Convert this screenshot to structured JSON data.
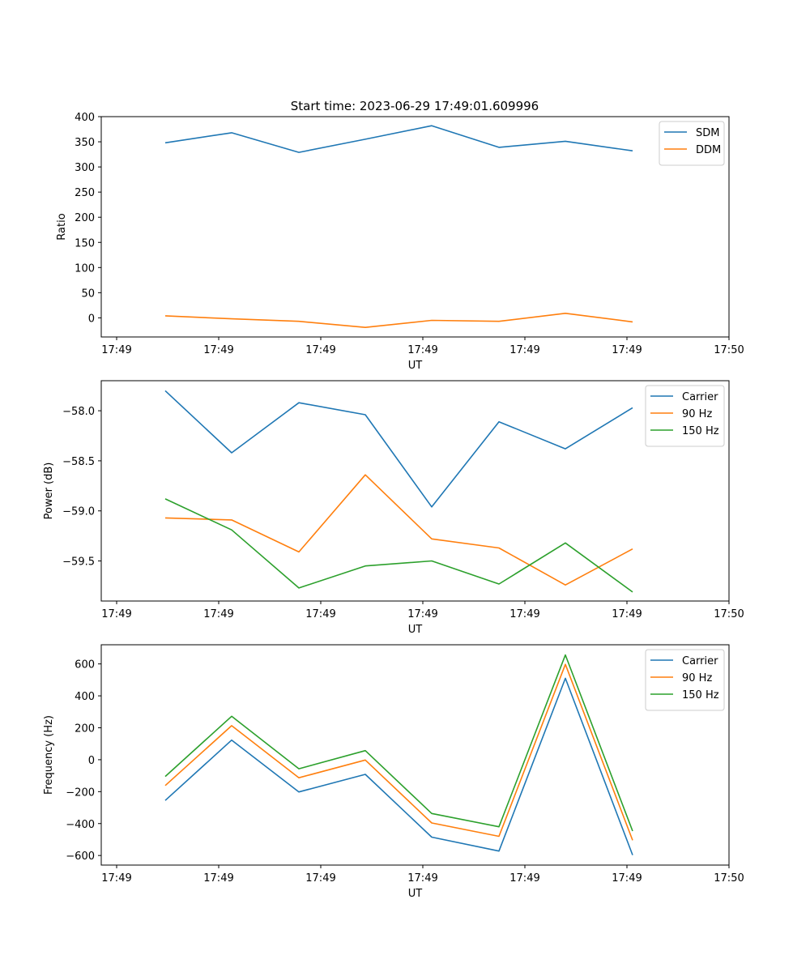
{
  "figure": {
    "title": "Start time: 2023-06-29 17:49:01.609996"
  },
  "chart_data": [
    {
      "type": "line",
      "xlabel": "UT",
      "ylabel": "Ratio",
      "x_tick_labels": [
        "17:49",
        "17:49",
        "17:49",
        "17:49",
        "17:49",
        "17:49",
        "17:50"
      ],
      "ylim": [
        -38,
        400
      ],
      "yticks": [
        0,
        50,
        100,
        150,
        200,
        250,
        300,
        350,
        400
      ],
      "ytick_labels": [
        "0",
        "50",
        "100",
        "150",
        "200",
        "250",
        "300",
        "350",
        "400"
      ],
      "legend_position": "upper right",
      "grid": false,
      "series": [
        {
          "name": "SDM",
          "color": "#1f77b4",
          "values": [
            348,
            368,
            329,
            355,
            382,
            339,
            351,
            332
          ]
        },
        {
          "name": "DDM",
          "color": "#ff7f0e",
          "values": [
            4,
            -2,
            -7,
            -19,
            -5,
            -7,
            9,
            -8
          ]
        }
      ]
    },
    {
      "type": "line",
      "xlabel": "UT",
      "ylabel": "Power (dB)",
      "x_tick_labels": [
        "17:49",
        "17:49",
        "17:49",
        "17:49",
        "17:49",
        "17:49",
        "17:50"
      ],
      "ylim": [
        -59.9,
        -57.7
      ],
      "yticks": [
        -58.0,
        -58.5,
        -59.0,
        -59.5
      ],
      "ytick_labels": [
        "−58.0",
        "−58.5",
        "−59.0",
        "−59.5"
      ],
      "legend_position": "upper right",
      "grid": false,
      "series": [
        {
          "name": "Carrier",
          "color": "#1f77b4",
          "values": [
            -57.8,
            -58.42,
            -57.92,
            -58.04,
            -58.96,
            -58.11,
            -58.38,
            -57.97
          ]
        },
        {
          "name": "90 Hz",
          "color": "#ff7f0e",
          "values": [
            -59.07,
            -59.09,
            -59.41,
            -58.64,
            -59.28,
            -59.37,
            -59.74,
            -59.38
          ]
        },
        {
          "name": "150 Hz",
          "color": "#2ca02c",
          "values": [
            -58.88,
            -59.19,
            -59.77,
            -59.55,
            -59.5,
            -59.73,
            -59.32,
            -59.81
          ]
        }
      ]
    },
    {
      "type": "line",
      "xlabel": "UT",
      "ylabel": "Frequency (Hz)",
      "x_tick_labels": [
        "17:49",
        "17:49",
        "17:49",
        "17:49",
        "17:49",
        "17:49",
        "17:50"
      ],
      "ylim": [
        -660,
        720
      ],
      "yticks": [
        -600,
        -400,
        -200,
        0,
        200,
        400,
        600
      ],
      "ytick_labels": [
        "−600",
        "−400",
        "−200",
        "0",
        "200",
        "400",
        "600"
      ],
      "legend_position": "upper right",
      "grid": false,
      "series": [
        {
          "name": "Carrier",
          "color": "#1f77b4",
          "values": [
            -255,
            123,
            -202,
            -92,
            -485,
            -572,
            510,
            -597
          ]
        },
        {
          "name": "90 Hz",
          "color": "#ff7f0e",
          "values": [
            -162,
            213,
            -113,
            -2,
            -396,
            -480,
            597,
            -505
          ]
        },
        {
          "name": "150 Hz",
          "color": "#2ca02c",
          "values": [
            -105,
            272,
            -57,
            57,
            -337,
            -420,
            656,
            -447
          ]
        }
      ]
    }
  ]
}
